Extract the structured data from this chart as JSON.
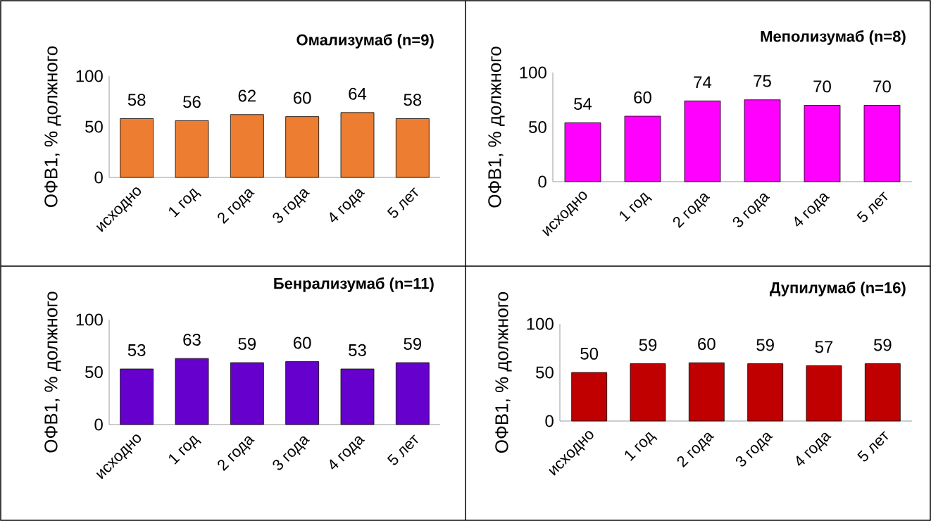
{
  "chart_data": [
    {
      "type": "bar",
      "title": "**Омализумаб (n=9)**",
      "ylabel": "ОФВ1, % должного",
      "categories": [
        "исходно",
        "1 год",
        "2 года",
        "3 года",
        "4 года",
        "5 лет"
      ],
      "values": [
        58,
        56,
        62,
        60,
        64,
        58
      ],
      "color": "#ed7d31",
      "ylim": [
        0,
        100
      ],
      "yticks": [
        0,
        50,
        100
      ],
      "data_labels": true
    },
    {
      "type": "bar",
      "title": "**Меполизумаб (n=8)**",
      "ylabel": "ОФВ1, % должного",
      "categories": [
        "исходно",
        "1 год",
        "2 года",
        "3 года",
        "4 года",
        "5 лет"
      ],
      "values": [
        54,
        60,
        74,
        75,
        70,
        70
      ],
      "color": "#ff00ff",
      "ylim": [
        0,
        100
      ],
      "yticks": [
        0,
        50,
        100
      ],
      "data_labels": true
    },
    {
      "type": "bar",
      "title": "**Бенрализумаб (n=11)**",
      "ylabel": "ОФВ1, % должного",
      "categories": [
        "исходно",
        "1 год",
        "2 года",
        "3 года",
        "4 года",
        "5 лет"
      ],
      "values": [
        53,
        63,
        59,
        60,
        53,
        59
      ],
      "color": "#6600cc",
      "ylim": [
        0,
        100
      ],
      "yticks": [
        0,
        50,
        100
      ],
      "data_labels": true
    },
    {
      "type": "bar",
      "title": "**Дупилумаб (n=16)**",
      "ylabel": "ОФВ1, % должного",
      "categories": [
        "исходно",
        "1 год",
        "2 года",
        "3 года",
        "4 года",
        "5 лет"
      ],
      "values": [
        50,
        59,
        60,
        59,
        57,
        59
      ],
      "color": "#c00000",
      "ylim": [
        0,
        100
      ],
      "yticks": [
        0,
        50,
        100
      ],
      "data_labels": true
    }
  ]
}
